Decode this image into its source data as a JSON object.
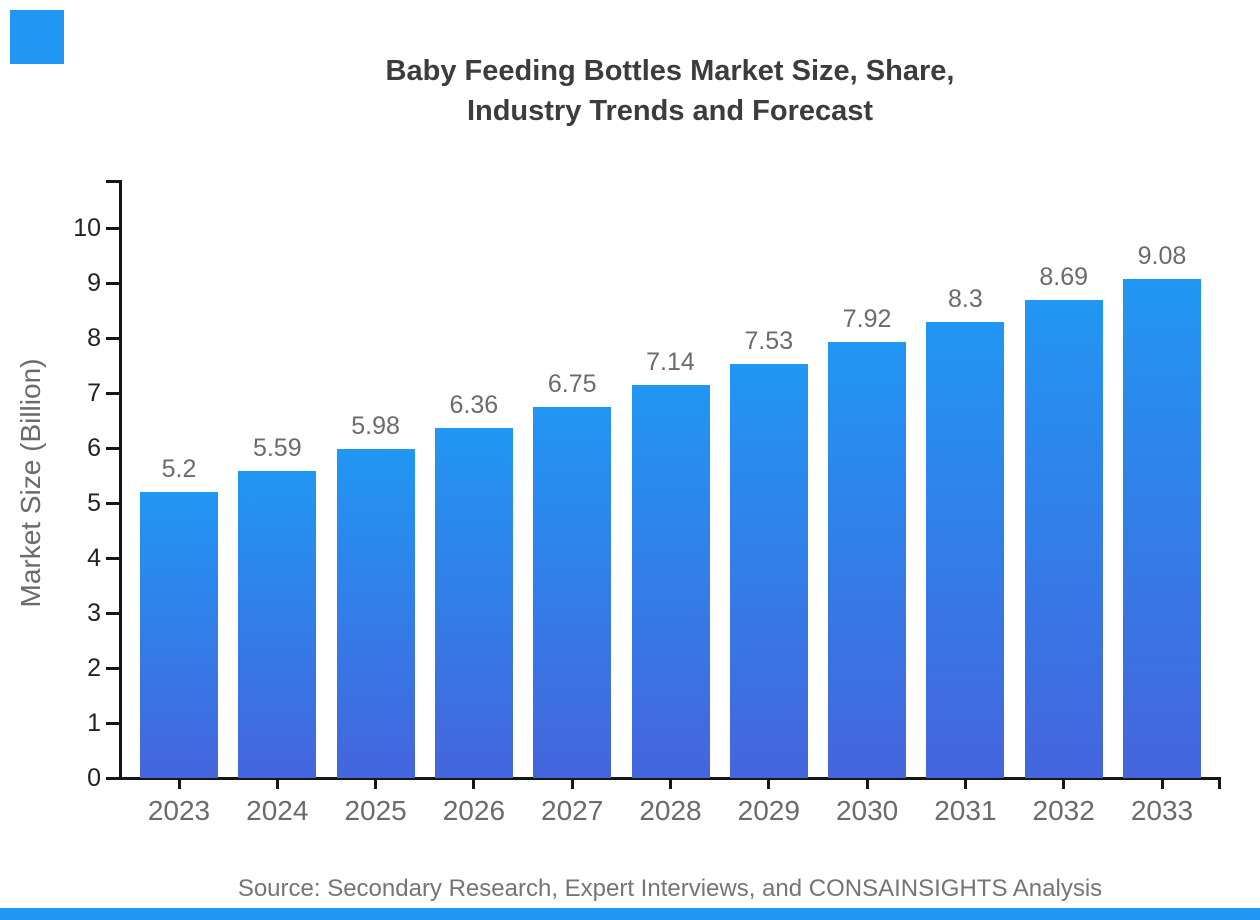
{
  "page": {
    "title_line1": "Baby Feeding Bottles Market Size, Share,",
    "title_line2": "Industry Trends and Forecast",
    "source_text": "Source: Secondary Research, Expert Interviews, and CONSAINSIGHTS Analysis"
  },
  "branding": {
    "accent_color": "#2196F3"
  },
  "chart_data": {
    "type": "bar",
    "title": "Baby Feeding Bottles Market Size, Share, Industry Trends and Forecast",
    "categories": [
      "2023",
      "2024",
      "2025",
      "2026",
      "2027",
      "2028",
      "2029",
      "2030",
      "2031",
      "2032",
      "2033"
    ],
    "values": [
      5.2,
      5.59,
      5.98,
      6.36,
      6.75,
      7.14,
      7.53,
      7.92,
      8.3,
      8.69,
      9.08
    ],
    "value_labels": [
      "5.2",
      "5.59",
      "5.98",
      "6.36",
      "6.75",
      "7.14",
      "7.53",
      "7.92",
      "8.3",
      "8.69",
      "9.08"
    ],
    "xlabel": "",
    "ylabel": "Market Size (Billion)",
    "ylim": [
      0,
      10
    ],
    "yticks": [
      0,
      1,
      2,
      3,
      4,
      5,
      6,
      7,
      8,
      9,
      10
    ],
    "grid": false,
    "legend": "none",
    "bar_color_top": "#2196F3",
    "bar_color_bottom": "#4565DC",
    "axis_color": "#161616",
    "label_color": "#6b6b6b"
  }
}
